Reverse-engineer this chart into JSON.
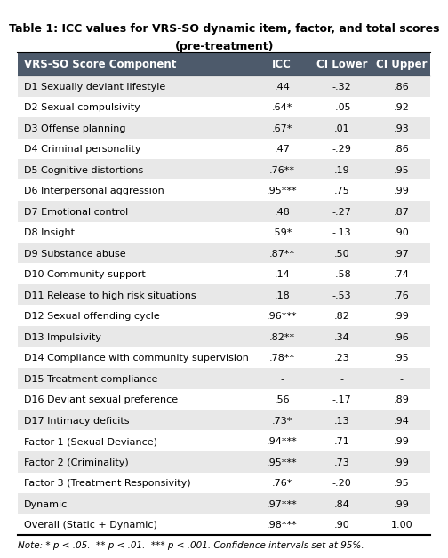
{
  "title_line1": "Table 1: ICC values for VRS-SO dynamic item, factor, and total scores",
  "title_line2": "(pre-treatment)",
  "header": [
    "VRS-SO Score Component",
    "ICC",
    "CI Lower",
    "CI Upper"
  ],
  "rows": [
    [
      "D1 Sexually deviant lifestyle",
      ".44",
      "-.32",
      ".86"
    ],
    [
      "D2 Sexual compulsivity",
      ".64*",
      "-.05",
      ".92"
    ],
    [
      "D3 Offense planning",
      ".67*",
      ".01",
      ".93"
    ],
    [
      "D4 Criminal personality",
      ".47",
      "-.29",
      ".86"
    ],
    [
      "D5 Cognitive distortions",
      ".76**",
      ".19",
      ".95"
    ],
    [
      "D6 Interpersonal aggression",
      ".95***",
      ".75",
      ".99"
    ],
    [
      "D7 Emotional control",
      ".48",
      "-.27",
      ".87"
    ],
    [
      "D8 Insight",
      ".59*",
      "-.13",
      ".90"
    ],
    [
      "D9 Substance abuse",
      ".87**",
      ".50",
      ".97"
    ],
    [
      "D10 Community support",
      ".14",
      "-.58",
      ".74"
    ],
    [
      "D11 Release to high risk situations",
      ".18",
      "-.53",
      ".76"
    ],
    [
      "D12 Sexual offending cycle",
      ".96***",
      ".82",
      ".99"
    ],
    [
      "D13 Impulsivity",
      ".82**",
      ".34",
      ".96"
    ],
    [
      "D14 Compliance with community supervision",
      ".78**",
      ".23",
      ".95"
    ],
    [
      "D15 Treatment compliance",
      "-",
      "-",
      "-"
    ],
    [
      "D16 Deviant sexual preference",
      ".56",
      "-.17",
      ".89"
    ],
    [
      "D17 Intimacy deficits",
      ".73*",
      ".13",
      ".94"
    ],
    [
      "Factor 1 (Sexual Deviance)",
      ".94***",
      ".71",
      ".99"
    ],
    [
      "Factor 2 (Criminality)",
      ".95***",
      ".73",
      ".99"
    ],
    [
      "Factor 3 (Treatment Responsivity)",
      ".76*",
      "-.20",
      ".95"
    ],
    [
      "Dynamic",
      ".97***",
      ".84",
      ".99"
    ],
    [
      "Overall (Static + Dynamic)",
      ".98***",
      ".90",
      "1.00"
    ]
  ],
  "note": "Note: * p < .05.  ** p < .01.  *** p < .001. Confidence intervals set at 95%.",
  "header_bg": "#4d5a6b",
  "header_fg": "#ffffff",
  "row_bg_odd": "#e8e8e8",
  "row_bg_even": "#ffffff",
  "font_size": 8.0,
  "header_font_size": 8.5,
  "title_fontsize": 9.0
}
